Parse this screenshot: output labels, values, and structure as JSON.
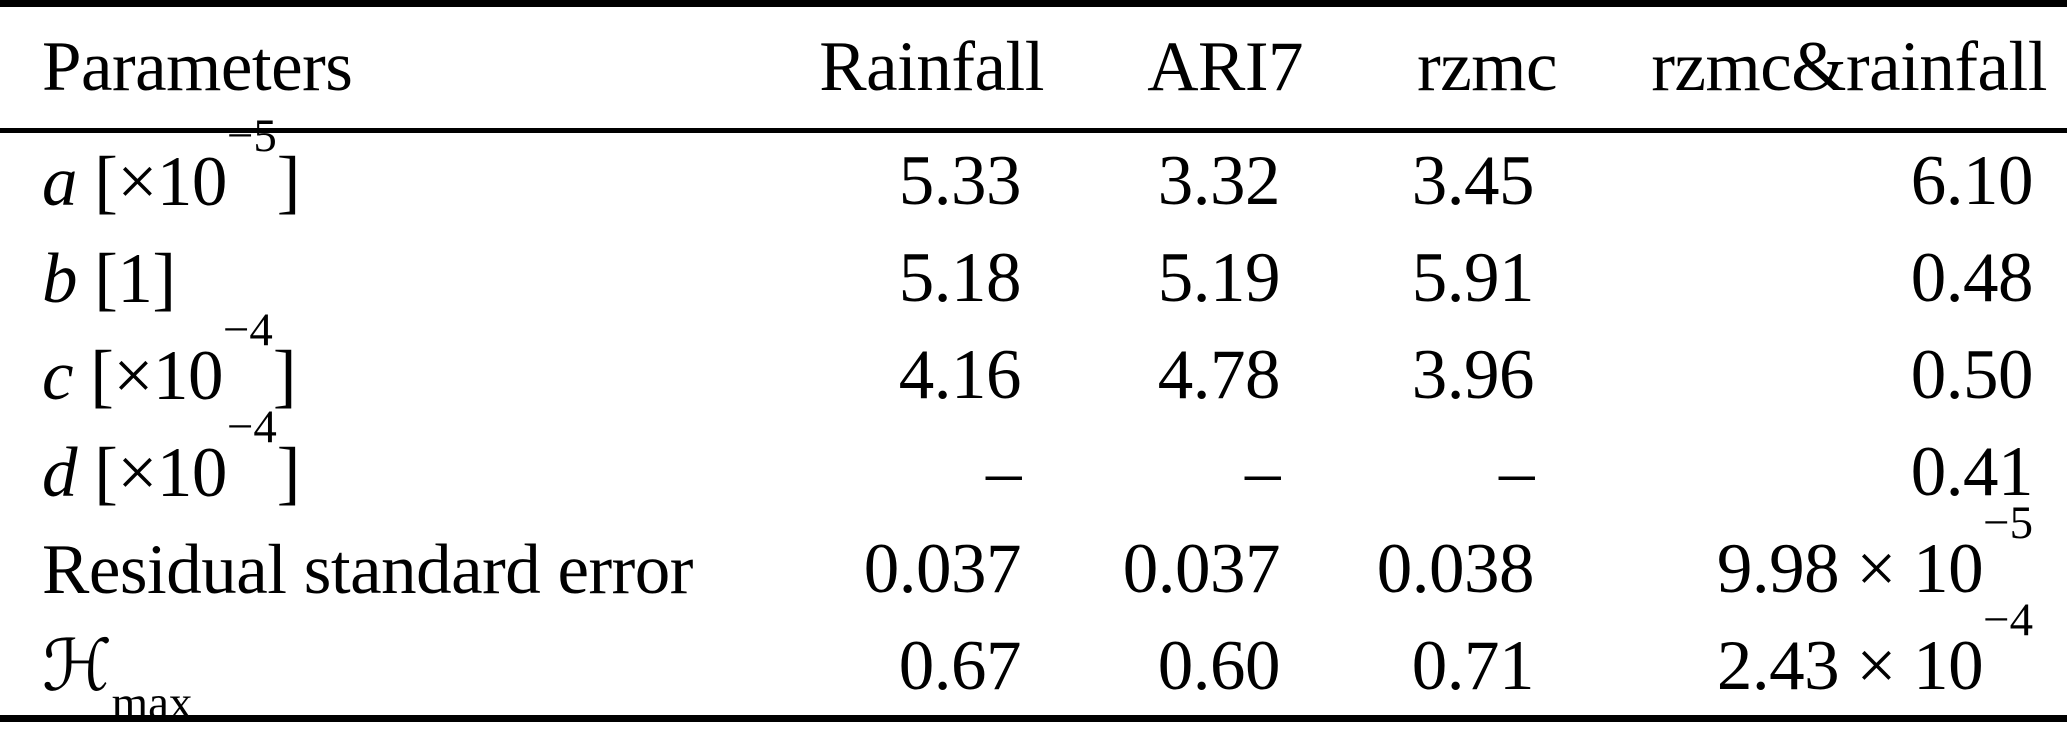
{
  "page": {
    "background": "#ffffff",
    "text_color": "#000000",
    "rule_color": "#000000"
  },
  "table": {
    "headers": {
      "parameters": "Parameters",
      "rainfall": "Rainfall",
      "ari7": "ARI7",
      "rzmc": "rzmc",
      "rzmc_rainfall": "rzmc&rainfall"
    },
    "rows": [
      {
        "label": {
          "letter": "a",
          "cal": "",
          "mid": " [×10",
          "sup": "−5",
          "sub": "",
          "end": "]"
        },
        "cells": [
          {
            "b": "5.33",
            "s": ""
          },
          {
            "b": "3.32",
            "s": ""
          },
          {
            "b": "3.45",
            "s": ""
          },
          {
            "b": "6.10",
            "s": ""
          }
        ]
      },
      {
        "label": {
          "letter": "b",
          "cal": "",
          "mid": " [1]",
          "sup": "",
          "sub": "",
          "end": ""
        },
        "cells": [
          {
            "b": "5.18",
            "s": ""
          },
          {
            "b": "5.19",
            "s": ""
          },
          {
            "b": "5.91",
            "s": ""
          },
          {
            "b": "0.48",
            "s": ""
          }
        ]
      },
      {
        "label": {
          "letter": "c",
          "cal": "",
          "mid": " [×10",
          "sup": "−4",
          "sub": "",
          "end": "]"
        },
        "cells": [
          {
            "b": "4.16",
            "s": ""
          },
          {
            "b": "4.78",
            "s": ""
          },
          {
            "b": "3.96",
            "s": ""
          },
          {
            "b": "0.50",
            "s": ""
          }
        ]
      },
      {
        "label": {
          "letter": "d",
          "cal": "",
          "mid": " [×10",
          "sup": "−4",
          "sub": "",
          "end": "]"
        },
        "cells": [
          {
            "b": "–",
            "s": ""
          },
          {
            "b": "–",
            "s": ""
          },
          {
            "b": "–",
            "s": ""
          },
          {
            "b": "0.41",
            "s": ""
          }
        ]
      },
      {
        "label": {
          "letter": "",
          "cal": "",
          "mid": "Residual standard error",
          "sup": "",
          "sub": "",
          "end": ""
        },
        "cells": [
          {
            "b": "0.037",
            "s": ""
          },
          {
            "b": "0.037",
            "s": ""
          },
          {
            "b": "0.038",
            "s": ""
          },
          {
            "b": "9.98 × 10",
            "s": "−5"
          }
        ]
      },
      {
        "label": {
          "letter": "",
          "cal": "ℋ",
          "mid": "",
          "sup": "",
          "sub": "max",
          "end": ""
        },
        "cells": [
          {
            "b": "0.67",
            "s": ""
          },
          {
            "b": "0.60",
            "s": ""
          },
          {
            "b": "0.71",
            "s": ""
          },
          {
            "b": "2.43 × 10",
            "s": "−4"
          }
        ]
      }
    ]
  }
}
